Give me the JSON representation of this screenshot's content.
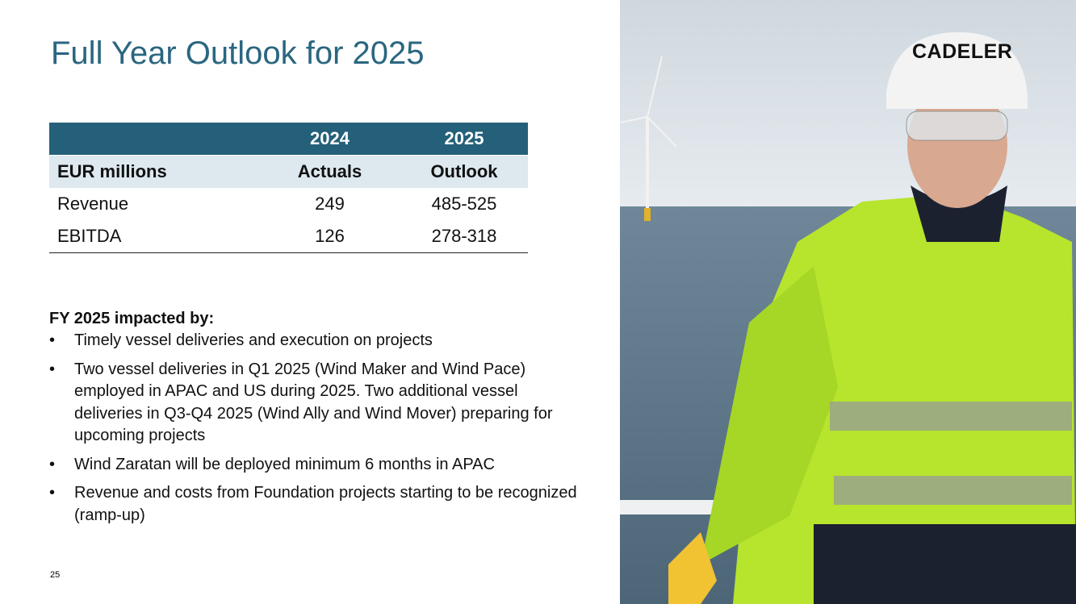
{
  "header": {
    "title": "Full Year Outlook for 2025",
    "logo": "CADELER"
  },
  "table": {
    "header_rows": [
      [
        "",
        "2024",
        "2025"
      ],
      [
        "EUR millions",
        "Actuals",
        "Outlook"
      ]
    ],
    "rows": [
      [
        "Revenue",
        249,
        "485-525"
      ],
      [
        "EBITDA",
        126,
        "278-318"
      ]
    ]
  },
  "notes": {
    "heading": "FY 2025 impacted by:",
    "bullets": [
      "Timely vessel deliveries and execution on projects",
      "Two vessel deliveries in Q1 2025 (Wind Maker and Wind Pace) employed in APAC and US during 2025. Two additional vessel deliveries in Q3-Q4 2025 (Wind Ally and Wind Mover) preparing for upcoming projects",
      "Wind Zaratan will be deployed minimum 6 months in APAC",
      "Revenue and costs from Foundation projects starting to be recognized (ramp-up)"
    ]
  },
  "footer": {
    "page_number": 25
  }
}
